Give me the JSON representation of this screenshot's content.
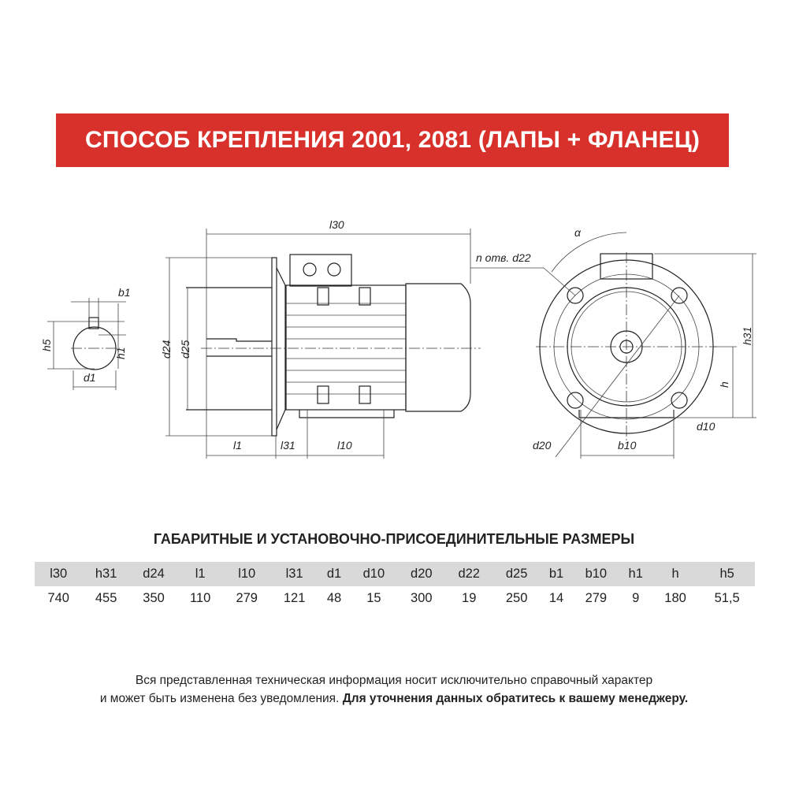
{
  "title": "СПОСОБ КРЕПЛЕНИЯ 2001, 2081 (ЛАПЫ + ФЛАНЕЦ)",
  "colors": {
    "banner": "#d8312b",
    "table_header": "#d9d9d9"
  },
  "drawing_labels": {
    "l30": "l30",
    "l1": "l1",
    "l31": "l31",
    "l10": "l10",
    "d24": "d24",
    "d25": "d25",
    "b1": "b1",
    "h5": "h5",
    "h1": "h1",
    "d1": "d1",
    "alpha": "α",
    "n_holes": "n отв. d22",
    "h31": "h31",
    "h": "h",
    "d10": "d10",
    "d20": "d20",
    "b10": "b10"
  },
  "subtitle": "ГАБАРИТНЫЕ И УСТАНОВОЧНО-ПРИСОЕДИНИТЕЛЬНЫЕ РАЗМЕРЫ",
  "table": {
    "headers": [
      "l30",
      "h31",
      "d24",
      "l1",
      "l10",
      "l31",
      "d1",
      "d10",
      "d20",
      "d22",
      "d25",
      "b1",
      "b10",
      "h1",
      "h",
      "h5"
    ],
    "values": [
      "740",
      "455",
      "350",
      "110",
      "279",
      "121",
      "48",
      "15",
      "300",
      "19",
      "250",
      "14",
      "279",
      "9",
      "180",
      "51,5"
    ]
  },
  "note": {
    "line1": "Вся представленная техническая информация носит исключительно справочный характер",
    "line2_plain": "и может быть изменена без уведомления. ",
    "line2_bold": "Для уточнения данных обратитесь к вашему менеджеру."
  }
}
